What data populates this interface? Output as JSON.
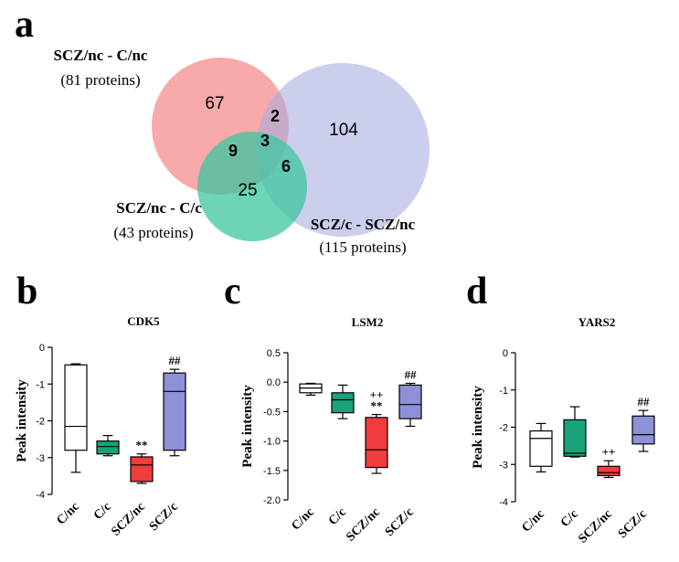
{
  "venn": {
    "panel_letter": "a",
    "sets": [
      {
        "name": "SCZ/nc - C/nc",
        "count_label": "(81 proteins)",
        "color": "#f47b7b"
      },
      {
        "name": "SCZ/nc - C/c",
        "count_label": "(43 proteins)",
        "color": "#3cc6a0"
      },
      {
        "name": "SCZ/c - SCZ/nc",
        "count_label": "(115 proteins)",
        "color": "#a9aee0"
      }
    ],
    "regions": {
      "only_red": "67",
      "only_blue": "104",
      "only_green": "25",
      "red_blue": "2",
      "red_green": "9",
      "green_blue": "6",
      "all_three": "3"
    }
  },
  "chart_data": [
    {
      "type": "box",
      "panel_letter": "b",
      "title": "CDK5",
      "ylabel": "Peak intensity",
      "ylim": [
        -4,
        0
      ],
      "yticks": [
        "0",
        "-1",
        "-2",
        "-3",
        "-4"
      ],
      "ytick_values": [
        0,
        -1,
        -2,
        -3,
        -4
      ],
      "categories": [
        "C/nc",
        "C/c",
        "SCZ/nc",
        "SCZ/c"
      ],
      "colors": [
        "#ffffff",
        "#1aa37a",
        "#f03c3c",
        "#8e91d6"
      ],
      "boxes": [
        {
          "min": -3.4,
          "q1": -2.8,
          "median": -2.15,
          "q3": -0.48,
          "max": -0.45,
          "sig": []
        },
        {
          "min": -2.95,
          "q1": -2.9,
          "median": -2.7,
          "q3": -2.55,
          "max": -2.4,
          "sig": []
        },
        {
          "min": -3.7,
          "q1": -3.65,
          "median": -3.2,
          "q3": -2.98,
          "max": -2.9,
          "sig": [
            "**"
          ]
        },
        {
          "min": -2.95,
          "q1": -2.8,
          "median": -1.2,
          "q3": -0.7,
          "max": -0.6,
          "sig": [
            "##"
          ]
        }
      ]
    },
    {
      "type": "box",
      "panel_letter": "c",
      "title": "LSM2",
      "ylabel": "Peak intensity",
      "ylim": [
        -2.0,
        0.5
      ],
      "yticks": [
        "0.5",
        "0.0",
        "-0.5",
        "-1.0",
        "-1.5",
        "-2.0"
      ],
      "ytick_values": [
        0.5,
        0.0,
        -0.5,
        -1.0,
        -1.5,
        -2.0
      ],
      "categories": [
        "C/nc",
        "C/c",
        "SCZ/nc",
        "SCZ/c"
      ],
      "colors": [
        "#ffffff",
        "#1aa37a",
        "#f03c3c",
        "#8e91d6"
      ],
      "boxes": [
        {
          "min": -0.22,
          "q1": -0.18,
          "median": -0.1,
          "q3": -0.03,
          "max": -0.02,
          "sig": []
        },
        {
          "min": -0.62,
          "q1": -0.52,
          "median": -0.3,
          "q3": -0.18,
          "max": -0.05,
          "sig": []
        },
        {
          "min": -1.55,
          "q1": -1.45,
          "median": -1.15,
          "q3": -0.6,
          "max": -0.55,
          "sig": [
            "**",
            "++"
          ]
        },
        {
          "min": -0.75,
          "q1": -0.62,
          "median": -0.38,
          "q3": -0.05,
          "max": -0.02,
          "sig": [
            "##"
          ]
        }
      ]
    },
    {
      "type": "box",
      "panel_letter": "d",
      "title": "YARS2",
      "ylabel": "Peak intensity",
      "ylim": [
        -4,
        0
      ],
      "yticks": [
        "0",
        "-1",
        "-2",
        "-3",
        "-4"
      ],
      "ytick_values": [
        0,
        -1,
        -2,
        -3,
        -4
      ],
      "categories": [
        "C/nc",
        "C/c",
        "SCZ/nc",
        "SCZ/c"
      ],
      "colors": [
        "#ffffff",
        "#1aa37a",
        "#f03c3c",
        "#8e91d6"
      ],
      "boxes": [
        {
          "min": -3.2,
          "q1": -3.05,
          "median": -2.3,
          "q3": -2.1,
          "max": -1.9,
          "sig": []
        },
        {
          "min": -2.8,
          "q1": -2.78,
          "median": -2.7,
          "q3": -1.8,
          "max": -1.45,
          "sig": []
        },
        {
          "min": -3.35,
          "q1": -3.3,
          "median": -3.22,
          "q3": -3.05,
          "max": -2.9,
          "sig": [
            "++"
          ]
        },
        {
          "min": -2.65,
          "q1": -2.45,
          "median": -2.2,
          "q3": -1.7,
          "max": -1.55,
          "sig": [
            "##"
          ]
        }
      ]
    }
  ]
}
